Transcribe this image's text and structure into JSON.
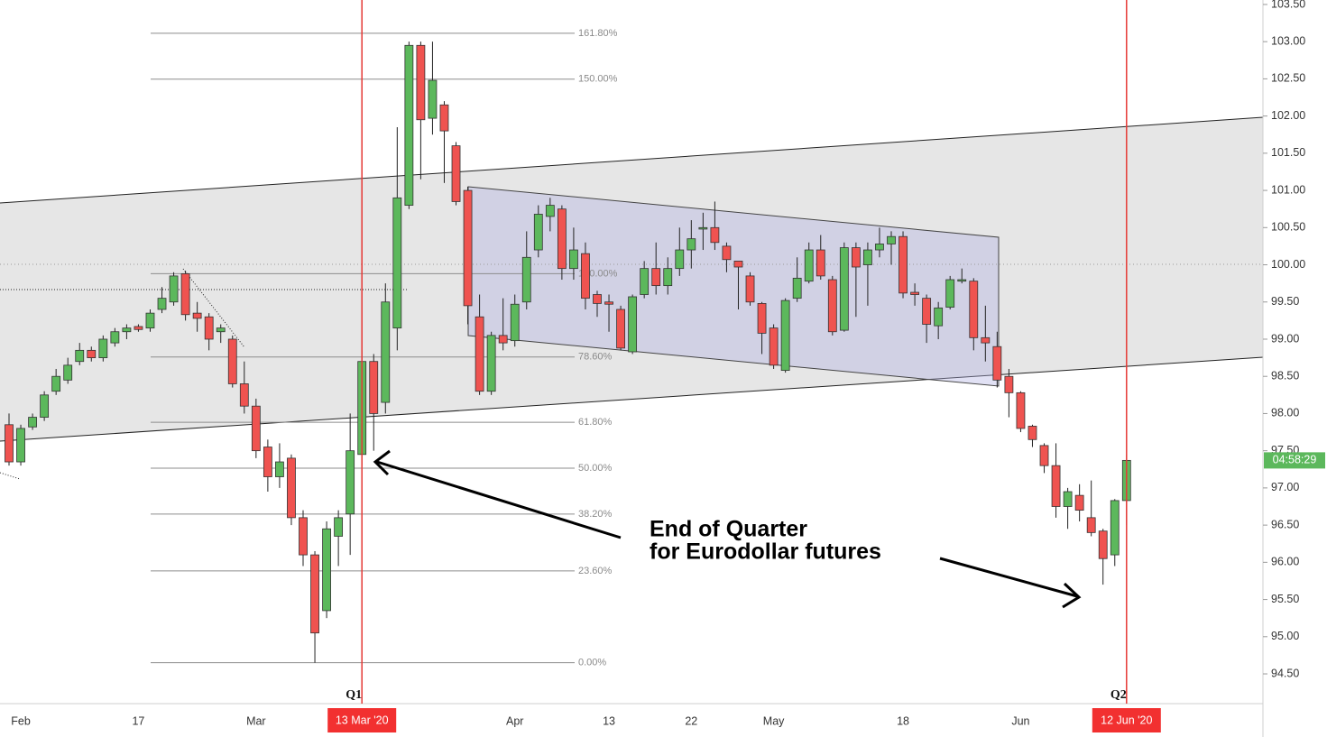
{
  "chart_data": {
    "type": "candlestick",
    "categories": [
      null,
      "Feb",
      null,
      null,
      null,
      null,
      null,
      null,
      null,
      null,
      null,
      "17",
      null,
      null,
      null,
      null,
      null,
      null,
      null,
      null,
      null,
      "Mar",
      null,
      null,
      null,
      null,
      null,
      null,
      null,
      null,
      "13 Mar '20",
      null,
      null,
      null,
      null,
      null,
      null,
      null,
      null,
      null,
      null,
      null,
      null,
      "Apr",
      null,
      null,
      null,
      null,
      null,
      null,
      null,
      "13",
      null,
      null,
      null,
      null,
      null,
      null,
      "22",
      null,
      null,
      null,
      null,
      null,
      null,
      "May",
      null,
      null,
      null,
      null,
      null,
      null,
      null,
      null,
      null,
      null,
      "18",
      null,
      null,
      null,
      null,
      null,
      null,
      null,
      null,
      null,
      "Jun",
      null,
      null,
      null,
      null,
      null,
      null,
      null,
      null,
      "12 Jun '20"
    ],
    "open": [
      97.85,
      97.35,
      97.82,
      97.95,
      98.3,
      98.45,
      98.7,
      98.85,
      98.75,
      98.95,
      99.1,
      99.17,
      99.15,
      99.4,
      99.5,
      99.88,
      99.35,
      99.3,
      99.1,
      99.0,
      98.4,
      98.1,
      97.55,
      97.15,
      97.4,
      96.6,
      96.1,
      95.35,
      96.35,
      96.65,
      97.45,
      98.7,
      98.15,
      99.15,
      100.8,
      102.95,
      101.97,
      102.15,
      101.6,
      101.0,
      99.3,
      98.3,
      99.05,
      98.98,
      99.5,
      100.2,
      100.65,
      100.75,
      99.95,
      100.15,
      99.6,
      99.5,
      99.4,
      98.83,
      99.6,
      99.95,
      99.72,
      99.95,
      100.2,
      100.48,
      100.5,
      100.25,
      100.05,
      99.85,
      99.48,
      99.15,
      98.58,
      99.55,
      99.78,
      100.2,
      99.8,
      99.12,
      100.23,
      100.0,
      100.2,
      100.28,
      100.38,
      99.63,
      99.55,
      99.18,
      99.43,
      99.78,
      99.78,
      99.02,
      98.9,
      98.5,
      98.28,
      97.83,
      97.57,
      97.3,
      96.75,
      96.9,
      96.6,
      96.42,
      96.1,
      96.83
    ],
    "high": [
      98.0,
      97.85,
      98.0,
      98.3,
      98.6,
      98.75,
      98.95,
      98.9,
      99.05,
      99.15,
      99.2,
      99.2,
      99.4,
      99.7,
      99.9,
      99.92,
      99.5,
      99.35,
      99.2,
      99.05,
      98.7,
      98.2,
      97.65,
      97.6,
      97.45,
      96.7,
      96.15,
      96.55,
      96.7,
      98.0,
      98.85,
      98.8,
      99.75,
      101.85,
      103.0,
      103.0,
      103.0,
      102.2,
      101.65,
      101.05,
      99.6,
      99.1,
      99.55,
      99.6,
      100.45,
      100.8,
      100.9,
      100.8,
      100.5,
      100.3,
      99.65,
      99.6,
      99.45,
      99.6,
      100.05,
      100.3,
      100.1,
      100.5,
      100.6,
      100.7,
      100.85,
      100.3,
      100.05,
      99.9,
      99.5,
      99.2,
      99.55,
      100.1,
      100.3,
      100.4,
      99.85,
      100.3,
      100.3,
      100.3,
      100.5,
      100.45,
      100.45,
      99.75,
      99.6,
      99.5,
      99.85,
      99.95,
      99.82,
      99.45,
      99.1,
      98.6,
      98.3,
      97.85,
      97.6,
      97.6,
      97.0,
      97.05,
      97.1,
      96.45,
      96.85,
      97.45
    ],
    "low": [
      97.3,
      97.3,
      97.78,
      97.9,
      98.25,
      98.4,
      98.65,
      98.7,
      98.7,
      98.9,
      99.0,
      99.1,
      99.1,
      99.35,
      99.45,
      99.25,
      99.1,
      98.85,
      98.95,
      98.35,
      98.0,
      97.4,
      96.95,
      97.0,
      96.5,
      95.95,
      94.65,
      95.25,
      95.95,
      96.1,
      97.3,
      97.5,
      98.0,
      98.85,
      100.75,
      101.15,
      101.75,
      101.1,
      100.8,
      99.2,
      98.25,
      98.25,
      98.85,
      98.9,
      99.4,
      100.1,
      100.45,
      99.8,
      99.8,
      99.4,
      99.3,
      99.1,
      98.85,
      98.8,
      99.55,
      99.6,
      99.6,
      99.85,
      99.95,
      100.2,
      100.2,
      99.9,
      99.4,
      99.45,
      98.8,
      98.6,
      98.55,
      99.5,
      99.75,
      99.8,
      99.05,
      99.1,
      99.3,
      99.45,
      100.1,
      100.0,
      99.55,
      99.45,
      98.95,
      99.0,
      99.4,
      99.75,
      98.85,
      98.7,
      98.35,
      97.95,
      97.75,
      97.55,
      97.2,
      96.6,
      96.45,
      96.55,
      96.35,
      95.7,
      95.95,
      96.5
    ],
    "close": [
      97.35,
      97.8,
      97.95,
      98.25,
      98.5,
      98.65,
      98.85,
      98.75,
      99.0,
      99.1,
      99.15,
      99.13,
      99.35,
      99.55,
      99.85,
      99.33,
      99.28,
      99.0,
      99.15,
      98.4,
      98.1,
      97.5,
      97.15,
      97.35,
      96.6,
      96.1,
      95.05,
      96.45,
      96.6,
      97.5,
      98.7,
      98.0,
      99.5,
      100.9,
      102.95,
      101.95,
      102.48,
      101.8,
      100.85,
      99.45,
      98.3,
      99.05,
      98.95,
      99.47,
      100.1,
      100.68,
      100.8,
      99.95,
      100.2,
      99.55,
      99.48,
      99.47,
      98.88,
      99.57,
      99.95,
      99.72,
      99.95,
      100.2,
      100.35,
      100.5,
      100.3,
      100.07,
      99.97,
      99.5,
      99.08,
      98.65,
      99.52,
      99.82,
      100.2,
      99.85,
      99.1,
      100.23,
      99.97,
      100.2,
      100.28,
      100.38,
      99.62,
      99.6,
      99.2,
      99.42,
      99.8,
      99.8,
      99.02,
      98.95,
      98.45,
      98.28,
      97.8,
      97.65,
      97.3,
      96.75,
      96.95,
      96.7,
      96.4,
      96.05,
      96.83,
      97.37
    ],
    "up_color": "#5cb85c",
    "down_color": "#ef5350",
    "ylim": [
      94.1,
      103.56
    ],
    "yticks": [
      {
        "value": 94.5,
        "label": "94.50"
      },
      {
        "value": 95.0,
        "label": "95.00"
      },
      {
        "value": 95.5,
        "label": "95.50"
      },
      {
        "value": 96.0,
        "label": "96.00"
      },
      {
        "value": 96.5,
        "label": "96.50"
      },
      {
        "value": 97.0,
        "label": "97.00"
      },
      {
        "value": 97.5,
        "label": "97.50"
      },
      {
        "value": 98.0,
        "label": "98.00"
      },
      {
        "value": 98.5,
        "label": "98.50"
      },
      {
        "value": 99.0,
        "label": "99.00"
      },
      {
        "value": 99.5,
        "label": "99.50"
      },
      {
        "value": 100.0,
        "label": "100.00"
      },
      {
        "value": 100.5,
        "label": "100.50"
      },
      {
        "value": 101.0,
        "label": "101.00"
      },
      {
        "value": 101.5,
        "label": "101.50"
      },
      {
        "value": 102.0,
        "label": "102.00"
      },
      {
        "value": 102.5,
        "label": "102.50"
      },
      {
        "value": 103.0,
        "label": "103.00"
      },
      {
        "value": 103.5,
        "label": "103.50"
      }
    ],
    "fibonacci": {
      "low": 94.65,
      "high": 99.88,
      "levels": [
        {
          "value": 161.8,
          "label": "161.80%"
        },
        {
          "value": 150,
          "label": "150.00%"
        },
        {
          "value": 100,
          "label": "100.00%"
        },
        {
          "value": 78.6,
          "label": "78.60%"
        },
        {
          "value": 61.8,
          "label": "61.80%"
        },
        {
          "value": 50,
          "label": "50.00%"
        },
        {
          "value": 38.2,
          "label": "38.20%"
        },
        {
          "value": 23.6,
          "label": "23.60%"
        },
        {
          "value": 0,
          "label": "0.00%"
        }
      ]
    },
    "markers": [
      {
        "at": 30,
        "label": "Q1"
      },
      {
        "at": 95,
        "label": "Q2"
      }
    ],
    "countdown": "04:58:29",
    "annotation": [
      "End of Quarter",
      "for Eurodollar futures"
    ]
  }
}
